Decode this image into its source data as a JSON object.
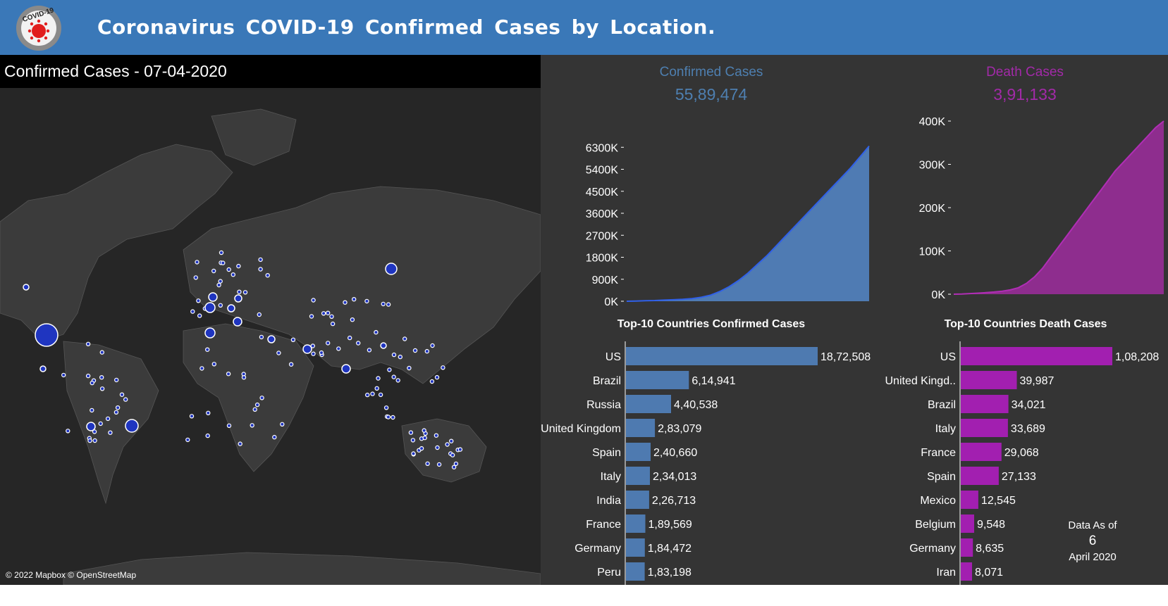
{
  "header": {
    "title": "Coronavirus COVID-19 Confirmed Cases by Location.",
    "logo_text": "COVID-19",
    "background": "#3a78b8"
  },
  "map": {
    "title": "Confirmed Cases - 07-04-2020",
    "attribution": "© 2022 Mapbox © OpenStreetMap",
    "marker_color": "#1f35c0"
  },
  "kpis": {
    "confirmed": {
      "label": "Confirmed Cases",
      "value": "55,89,474",
      "color": "#4e7fb0"
    },
    "deaths": {
      "label": "Death Cases",
      "value": "3,91,133",
      "color": "#a22aa8"
    }
  },
  "chart_data": [
    {
      "type": "area",
      "name": "confirmed-trend",
      "color": "#4f7bb3",
      "line_color": "#3060e8",
      "y_ticks": [
        "0K",
        "900K",
        "1800K",
        "2700K",
        "3600K",
        "4500K",
        "5400K",
        "6300K"
      ],
      "y_tick_values": [
        0,
        900000,
        1800000,
        2700000,
        3600000,
        4500000,
        5400000,
        6300000
      ],
      "ylim": [
        0,
        7200000
      ],
      "values": [
        0,
        8000,
        20000,
        30000,
        45000,
        60000,
        80000,
        110000,
        160000,
        250000,
        400000,
        600000,
        850000,
        1150000,
        1500000,
        1850000,
        2250000,
        2650000,
        3050000,
        3450000,
        3850000,
        4250000,
        4650000,
        5050000,
        5450000,
        5900000,
        6350000
      ]
    },
    {
      "type": "area",
      "name": "death-trend",
      "color": "#8e2d8e",
      "line_color": "#b02eb5",
      "y_ticks": [
        "0K",
        "100K",
        "200K",
        "300K",
        "400K"
      ],
      "y_tick_values": [
        0,
        100000,
        200000,
        300000,
        400000
      ],
      "ylim": [
        0,
        400000
      ],
      "values": [
        0,
        500,
        1500,
        2500,
        3500,
        5000,
        7000,
        10000,
        15000,
        25000,
        40000,
        60000,
        85000,
        110000,
        135000,
        160000,
        185000,
        210000,
        235000,
        260000,
        285000,
        305000,
        325000,
        345000,
        365000,
        385000,
        400000
      ]
    },
    {
      "type": "bar",
      "name": "top10-confirmed",
      "title": "Top-10 Countries Confirmed Cases",
      "color": "#4e7ab0",
      "categories": [
        "US",
        "Brazil",
        "Russia",
        "United Kingdom",
        "Spain",
        "Italy",
        "India",
        "France",
        "Germany",
        "Peru"
      ],
      "values": [
        1872508,
        614941,
        440538,
        283079,
        240660,
        234013,
        226713,
        189569,
        184472,
        183198
      ],
      "labels": [
        "18,72,508",
        "6,14,941",
        "4,40,538",
        "2,83,079",
        "2,40,660",
        "2,34,013",
        "2,26,713",
        "1,89,569",
        "1,84,472",
        "1,83,198"
      ]
    },
    {
      "type": "bar",
      "name": "top10-deaths",
      "title": "Top-10 Countries Death  Cases",
      "color": "#a21fb0",
      "categories": [
        "US",
        "United Kingd..",
        "Brazil",
        "Italy",
        "France",
        "Spain",
        "Mexico",
        "Belgium",
        "Germany",
        "Iran"
      ],
      "values": [
        108208,
        39987,
        34021,
        33689,
        29068,
        27133,
        12545,
        9548,
        8635,
        8071
      ],
      "labels": [
        "1,08,208",
        "39,987",
        "34,021",
        "33,689",
        "29,068",
        "27,133",
        "12,545",
        "9,548",
        "8,635",
        "8,071"
      ]
    }
  ],
  "as_of": {
    "label": "Data As of",
    "day": "6",
    "month": "April 2020"
  }
}
